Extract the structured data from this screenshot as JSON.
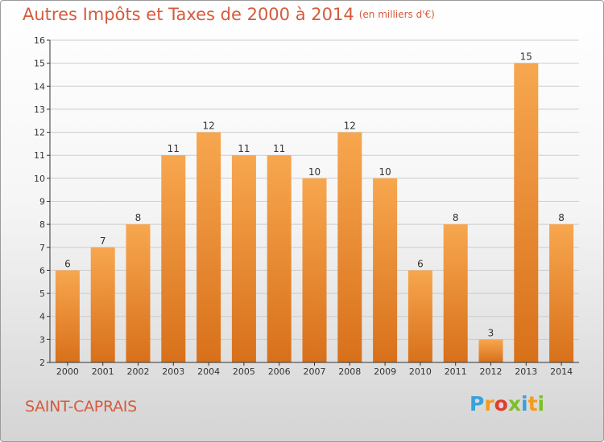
{
  "title": "Autres Impôts et Taxes de 2000 à 2014",
  "unit": "(en milliers d'€)",
  "town": "SAINT-CAPRAIS",
  "logo": [
    "P",
    "r",
    "o",
    "x",
    "i",
    "t",
    "i"
  ],
  "logo_colors": [
    "#3aa0dc",
    "#f29b1d",
    "#e33b2e",
    "#7bbf2a",
    "#3aa0dc",
    "#f29b1d",
    "#7bbf2a"
  ],
  "colors": {
    "bar_light": "#f7a74f",
    "bar_dark": "#d8701a",
    "axis": "#333333",
    "grid": "#cccccc",
    "accent": "#d65a3c"
  },
  "chart_data": {
    "type": "bar",
    "categories": [
      "2000",
      "2001",
      "2002",
      "2003",
      "2004",
      "2005",
      "2006",
      "2007",
      "2008",
      "2009",
      "2010",
      "2011",
      "2012",
      "2013",
      "2014"
    ],
    "values": [
      6,
      7,
      8,
      11,
      12,
      11,
      11,
      10,
      12,
      10,
      6,
      8,
      3,
      15,
      8
    ],
    "yticks": [
      2,
      3,
      4,
      5,
      6,
      7,
      8,
      9,
      10,
      11,
      12,
      13,
      14,
      15,
      16
    ],
    "ylim": [
      2,
      16
    ],
    "grid": true
  }
}
